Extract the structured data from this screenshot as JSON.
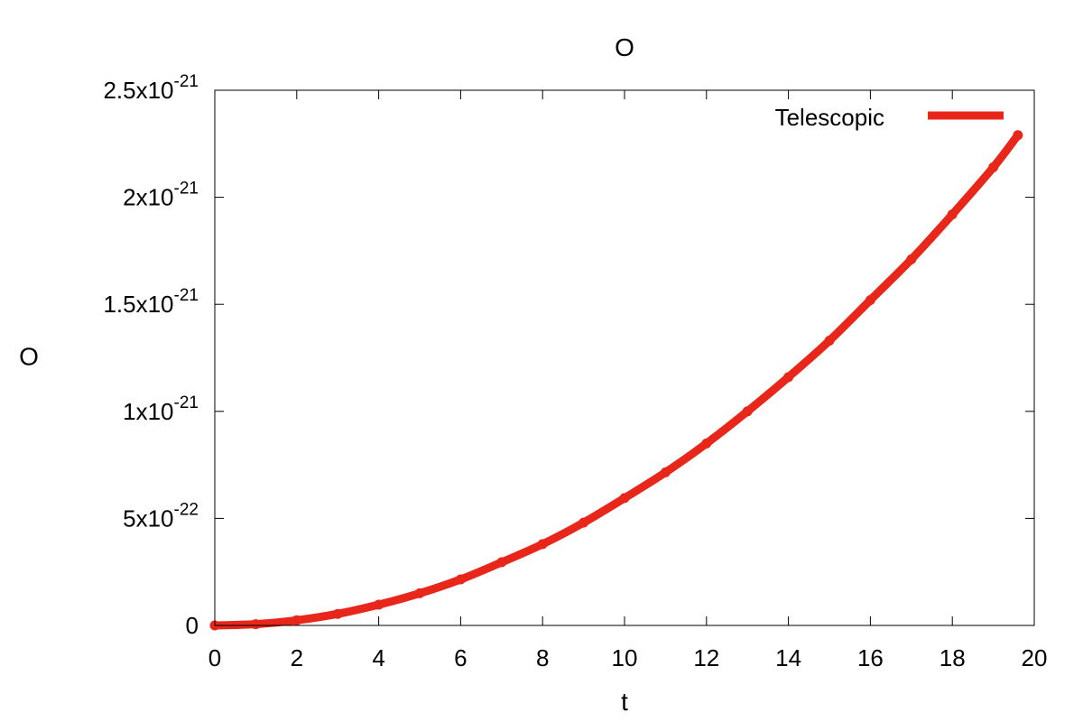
{
  "chart_data": {
    "type": "line",
    "title": "O",
    "xlabel": "t",
    "ylabel": "O",
    "xlim": [
      0,
      20
    ],
    "ylim": [
      0,
      2.5e-21
    ],
    "grid": false,
    "legend_position": "top-right",
    "x_ticks": [
      {
        "value": 0,
        "label": "0"
      },
      {
        "value": 2,
        "label": "2"
      },
      {
        "value": 4,
        "label": "4"
      },
      {
        "value": 6,
        "label": "6"
      },
      {
        "value": 8,
        "label": "8"
      },
      {
        "value": 10,
        "label": "10"
      },
      {
        "value": 12,
        "label": "12"
      },
      {
        "value": 14,
        "label": "14"
      },
      {
        "value": 16,
        "label": "16"
      },
      {
        "value": 18,
        "label": "18"
      },
      {
        "value": 20,
        "label": "20"
      }
    ],
    "y_ticks": [
      {
        "value": 0,
        "mantissa": "0",
        "exponent": ""
      },
      {
        "value": 5e-22,
        "mantissa": "5x10",
        "exponent": "-22"
      },
      {
        "value": 1e-21,
        "mantissa": "1x10",
        "exponent": "-21"
      },
      {
        "value": 1.5e-21,
        "mantissa": "1.5x10",
        "exponent": "-21"
      },
      {
        "value": 2e-21,
        "mantissa": "2x10",
        "exponent": "-21"
      },
      {
        "value": 2.5e-21,
        "mantissa": "2.5x10",
        "exponent": "-21"
      }
    ],
    "series": [
      {
        "name": "Telescopic",
        "color": "#e8261a",
        "x": [
          0,
          1,
          2,
          3,
          4,
          5,
          6,
          7,
          8,
          9,
          10,
          11,
          12,
          13,
          14,
          15,
          16,
          17,
          18,
          19,
          19.6
        ],
        "y": [
          0,
          6e-24,
          2.4e-23,
          5.4e-23,
          9.7e-23,
          1.5e-22,
          2.15e-22,
          2.95e-22,
          3.8e-22,
          4.8e-22,
          5.95e-22,
          7.15e-22,
          8.5e-22,
          1e-21,
          1.16e-21,
          1.33e-21,
          1.52e-21,
          1.71e-21,
          1.92e-21,
          2.14e-21,
          2.29e-21
        ]
      }
    ]
  }
}
